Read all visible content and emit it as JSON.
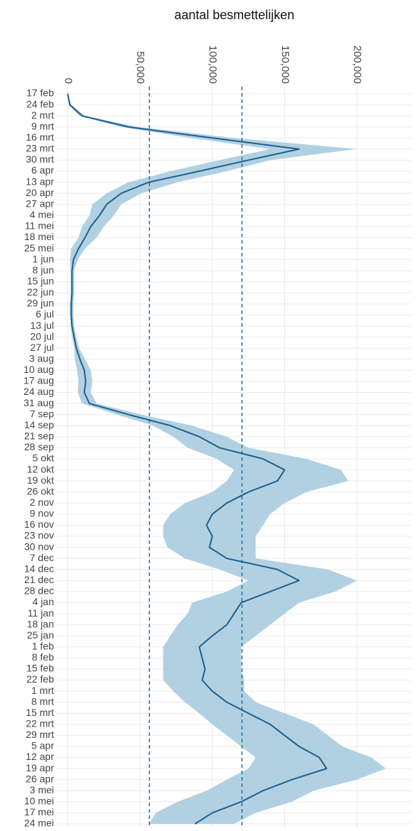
{
  "chart_data": {
    "type": "line",
    "title": "aantal besmettelijken",
    "categories": [
      "17 feb",
      "24 feb",
      "2 mrt",
      "9 mrt",
      "16 mrt",
      "23 mrt",
      "30 mrt",
      "6 apr",
      "13 apr",
      "20 apr",
      "27 apr",
      "4 mei",
      "11 mei",
      "18 mei",
      "25 mei",
      "1 jun",
      "8 jun",
      "15 jun",
      "22 jun",
      "29 jun",
      "6 jul",
      "13 jul",
      "20 jul",
      "27 jul",
      "3 aug",
      "10 aug",
      "17 aug",
      "24 aug",
      "31 aug",
      "7 sep",
      "14 sep",
      "21 sep",
      "28 sep",
      "5 okt",
      "12 okt",
      "19 okt",
      "26 okt",
      "2 nov",
      "9 nov",
      "16 nov",
      "23 nov",
      "30 nov",
      "7 dec",
      "14 dec",
      "21 dec",
      "28 dec",
      "4 jan",
      "11 jan",
      "18 jan",
      "25 jan",
      "1 feb",
      "8 feb",
      "15 feb",
      "22 feb",
      "1 mrt",
      "8 mrt",
      "15 mrt",
      "22 mrt",
      "29 mrt",
      "5 apr",
      "12 apr",
      "19 apr",
      "26 apr",
      "3 mei",
      "10 mei",
      "17 mei",
      "24 mei"
    ],
    "values": [
      0,
      1500,
      10000,
      42000,
      100000,
      160000,
      125000,
      91000,
      56000,
      37000,
      27000,
      22000,
      16000,
      12000,
      7500,
      4000,
      3000,
      3000,
      3000,
      2500,
      2500,
      3000,
      4500,
      6000,
      8500,
      11500,
      12500,
      11500,
      15000,
      42000,
      71000,
      91000,
      105000,
      135000,
      150000,
      145000,
      125000,
      110000,
      100000,
      96000,
      100000,
      98000,
      110000,
      145000,
      160000,
      140000,
      120000,
      115000,
      110000,
      100000,
      91000,
      93000,
      95000,
      93000,
      100000,
      110000,
      125000,
      140000,
      150000,
      160000,
      174000,
      179000,
      155000,
      135000,
      120000,
      100000,
      88000
    ],
    "lower": [
      0,
      1000,
      8000,
      37000,
      85000,
      140000,
      105000,
      71000,
      42000,
      27000,
      17000,
      15000,
      10000,
      7500,
      2500,
      1500,
      2000,
      2000,
      2000,
      1500,
      1500,
      2000,
      3000,
      4500,
      5000,
      6500,
      7500,
      7000,
      10000,
      34000,
      59000,
      73000,
      83000,
      103000,
      115000,
      110000,
      100000,
      81000,
      71000,
      66000,
      66000,
      69000,
      81000,
      105000,
      125000,
      110000,
      86000,
      83000,
      76000,
      71000,
      66000,
      66000,
      66000,
      66000,
      73000,
      81000,
      91000,
      100000,
      110000,
      120000,
      130000,
      125000,
      110000,
      96000,
      76000,
      61000,
      56000
    ],
    "upper": [
      0,
      2500,
      12000,
      49000,
      115000,
      200000,
      140000,
      110000,
      76000,
      51000,
      37000,
      32000,
      25000,
      20000,
      12000,
      7000,
      4500,
      4500,
      4500,
      4000,
      4000,
      4500,
      6000,
      8000,
      12000,
      16000,
      17000,
      16000,
      20000,
      51000,
      86000,
      110000,
      125000,
      165000,
      189000,
      194000,
      165000,
      150000,
      140000,
      135000,
      130000,
      130000,
      130000,
      180000,
      200000,
      185000,
      160000,
      150000,
      140000,
      130000,
      120000,
      120000,
      120000,
      122000,
      122000,
      130000,
      150000,
      170000,
      180000,
      190000,
      210000,
      220000,
      200000,
      170000,
      155000,
      130000,
      115000
    ],
    "color": "#1f5f8b",
    "band_color": "#a9cce0",
    "xlim": [
      -7500,
      238000
    ],
    "xticks": [
      0,
      {
        "value": 50000,
        "label": "50,000"
      },
      {
        "value": 100000,
        "label": "100,000"
      },
      {
        "value": 150000,
        "label": "150,000"
      },
      {
        "value": 200000,
        "label": "200,000"
      }
    ],
    "reference_lines": [
      56500,
      120500
    ],
    "reference_color": "#1f6f9f",
    "grid": true
  }
}
